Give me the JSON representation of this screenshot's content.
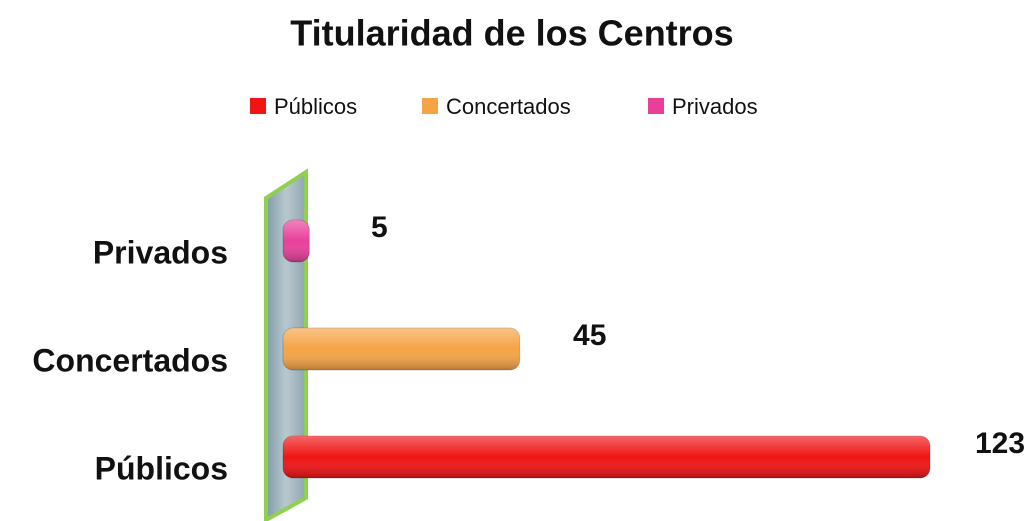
{
  "chart_data": {
    "type": "bar",
    "title": "Titularidad de los Centros",
    "categories": [
      "Públicos",
      "Concertados",
      "Privados"
    ],
    "values": [
      123,
      45,
      5
    ],
    "colors": [
      "#f01414",
      "#f5a445",
      "#e8409a"
    ],
    "legend": "top"
  }
}
